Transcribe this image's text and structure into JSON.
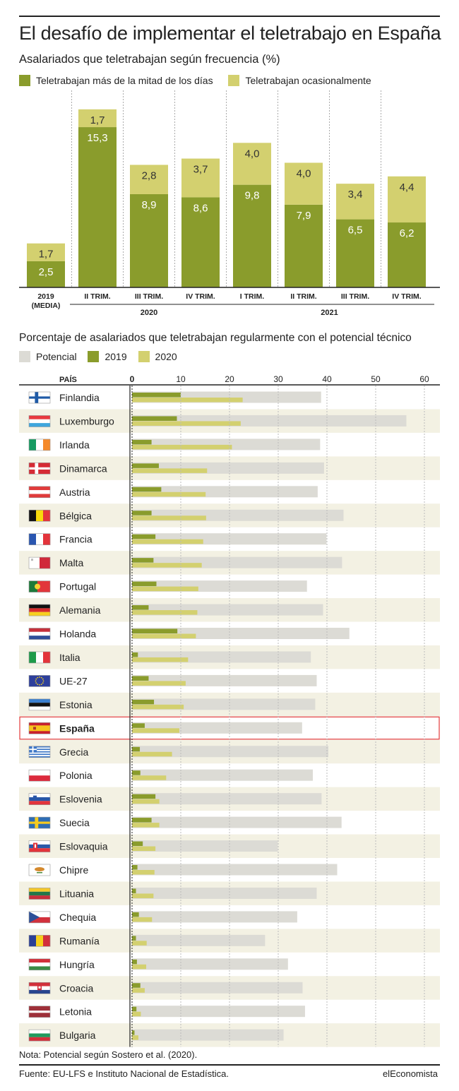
{
  "title": "El desafío de implementar el teletrabajo en España",
  "colors": {
    "dark_green": "#8a9c2c",
    "light_green": "#d3d06f",
    "potential_gray": "#dcdbd5",
    "stripe": "#f3f1e3",
    "highlight_box": "#e23b3b"
  },
  "chart_data": [
    {
      "type": "bar",
      "stacked": true,
      "title": "Asalariados que teletrabajan según frecuencia (%)",
      "categories": [
        "2019 (MEDIA)",
        "II TRIM.",
        "III TRIM.",
        "IV TRIM.",
        "I TRIM.",
        "II TRIM.",
        "III TRIM.",
        "IV TRIM."
      ],
      "category_lines": [
        [
          "2019",
          "(MEDIA)"
        ],
        [
          "II TRIM."
        ],
        [
          "III TRIM."
        ],
        [
          "IV TRIM."
        ],
        [
          "I TRIM."
        ],
        [
          "II TRIM."
        ],
        [
          "III TRIM."
        ],
        [
          "IV TRIM."
        ]
      ],
      "groups": [
        {
          "label": "2020",
          "categories": [
            1,
            2,
            3
          ]
        },
        {
          "label": "2021",
          "categories": [
            4,
            5,
            6,
            7
          ]
        }
      ],
      "series": [
        {
          "name": "Teletrabajan más de la mitad de los días",
          "values": [
            2.5,
            15.3,
            8.9,
            8.6,
            9.8,
            7.9,
            6.5,
            6.2
          ],
          "labels": [
            "2,5",
            "15,3",
            "8,9",
            "8,6",
            "9,8",
            "7,9",
            "6,5",
            "6,2"
          ],
          "color": "#8a9c2c"
        },
        {
          "name": "Teletrabajan ocasionalmente",
          "values": [
            1.7,
            1.7,
            2.8,
            3.7,
            4.0,
            4.0,
            3.4,
            4.4
          ],
          "labels": [
            "1,7",
            "1,7",
            "2,8",
            "3,7",
            "4,0",
            "4,0",
            "3,4",
            "4,4"
          ],
          "color": "#d3d06f"
        }
      ],
      "legend_position": "top-left",
      "grid": "vertical-dashed"
    },
    {
      "type": "bar",
      "orientation": "horizontal",
      "title": "Porcentaje de asalariados que teletrabajan regularmente con el potencial técnico",
      "column_header": "PAÍS",
      "x_ticks": [
        "0",
        "10",
        "20",
        "30",
        "40",
        "50",
        "60"
      ],
      "xlim": [
        0,
        60
      ],
      "highlight": "España",
      "legend_position": "top-left",
      "grid": "vertical-dashed",
      "series_names": [
        "Potencial",
        "2019",
        "2020"
      ],
      "rows": [
        {
          "country": "Finlandia",
          "flag": "finland-flag",
          "potential": 38.8,
          "y2019": 10.0,
          "y2020": 22.7
        },
        {
          "country": "Luxemburgo",
          "flag": "luxembourg-flag",
          "potential": 56.3,
          "y2019": 9.2,
          "y2020": 22.3
        },
        {
          "country": "Irlanda",
          "flag": "ireland-flag",
          "potential": 38.6,
          "y2019": 4.0,
          "y2020": 20.5
        },
        {
          "country": "Dinamarca",
          "flag": "denmark-flag",
          "potential": 39.4,
          "y2019": 5.5,
          "y2020": 15.4
        },
        {
          "country": "Austria",
          "flag": "austria-flag",
          "potential": 38.1,
          "y2019": 6.0,
          "y2020": 15.1
        },
        {
          "country": "Bélgica",
          "flag": "belgium-flag",
          "potential": 43.4,
          "y2019": 4.0,
          "y2020": 15.2
        },
        {
          "country": "Francia",
          "flag": "france-flag",
          "potential": 39.9,
          "y2019": 4.8,
          "y2020": 14.6
        },
        {
          "country": "Malta",
          "flag": "malta-flag",
          "potential": 43.1,
          "y2019": 4.4,
          "y2020": 14.3
        },
        {
          "country": "Portugal",
          "flag": "portugal-flag",
          "potential": 35.9,
          "y2019": 5.0,
          "y2020": 13.6
        },
        {
          "country": "Alemania",
          "flag": "germany-flag",
          "potential": 39.2,
          "y2019": 3.4,
          "y2020": 13.4
        },
        {
          "country": "Holanda",
          "flag": "netherlands-flag",
          "potential": 44.6,
          "y2019": 9.3,
          "y2020": 13.1
        },
        {
          "country": "Italia",
          "flag": "italy-flag",
          "potential": 36.7,
          "y2019": 1.2,
          "y2020": 11.5
        },
        {
          "country": "UE-27",
          "flag": "eu-flag",
          "potential": 37.9,
          "y2019": 3.4,
          "y2020": 11.0
        },
        {
          "country": "Estonia",
          "flag": "estonia-flag",
          "potential": 37.6,
          "y2019": 4.5,
          "y2020": 10.6
        },
        {
          "country": "España",
          "flag": "spain-flag",
          "potential": 34.9,
          "y2019": 2.6,
          "y2020": 9.7
        },
        {
          "country": "Grecia",
          "flag": "greece-flag",
          "potential": 40.3,
          "y2019": 1.6,
          "y2020": 8.2
        },
        {
          "country": "Polonia",
          "flag": "poland-flag",
          "potential": 37.1,
          "y2019": 1.7,
          "y2020": 7.0
        },
        {
          "country": "Eslovenia",
          "flag": "slovenia-flag",
          "potential": 38.9,
          "y2019": 4.8,
          "y2020": 5.6
        },
        {
          "country": "Suecia",
          "flag": "sweden-flag",
          "potential": 43.0,
          "y2019": 4.0,
          "y2020": 5.6
        },
        {
          "country": "Eslovaquia",
          "flag": "slovakia-flag",
          "potential": 29.9,
          "y2019": 2.2,
          "y2020": 4.8
        },
        {
          "country": "Chipre",
          "flag": "cyprus-flag",
          "potential": 42.1,
          "y2019": 1.1,
          "y2020": 4.6
        },
        {
          "country": "Lituania",
          "flag": "lithuania-flag",
          "potential": 37.9,
          "y2019": 0.8,
          "y2020": 4.4
        },
        {
          "country": "Chequia",
          "flag": "czechia-flag",
          "potential": 33.9,
          "y2019": 1.4,
          "y2020": 4.1
        },
        {
          "country": "Rumanía",
          "flag": "romania-flag",
          "potential": 27.3,
          "y2019": 0.8,
          "y2020": 3.0
        },
        {
          "country": "Hungría",
          "flag": "hungary-flag",
          "potential": 32.0,
          "y2019": 1.0,
          "y2020": 2.9
        },
        {
          "country": "Croacia",
          "flag": "croatia-flag",
          "potential": 35.0,
          "y2019": 1.7,
          "y2020": 2.6
        },
        {
          "country": "Letonia",
          "flag": "latvia-flag",
          "potential": 35.5,
          "y2019": 0.9,
          "y2020": 1.8
        },
        {
          "country": "Bulgaria",
          "flag": "bulgaria-flag",
          "potential": 31.1,
          "y2019": 0.5,
          "y2020": 1.3
        }
      ]
    }
  ],
  "note": "Nota: Potencial según Sostero et al. (2020).",
  "source": "Fuente: EU-LFS e Instituto Nacional de Estadística.",
  "brand": "elEconomista"
}
